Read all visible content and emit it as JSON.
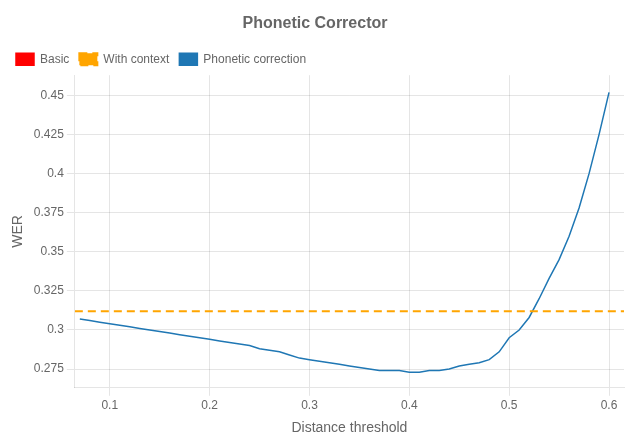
{
  "chart_data": {
    "type": "line",
    "title": "Phonetic Corrector",
    "xlabel": "Distance threshold",
    "ylabel": "WER",
    "xlim": [
      0.065,
      0.615
    ],
    "ylim": [
      0.263,
      0.463
    ],
    "xticks": [
      0.1,
      0.2,
      0.3,
      0.4,
      0.5,
      0.6
    ],
    "yticks": [
      0.275,
      0.3,
      0.325,
      0.35,
      0.375,
      0.4,
      0.425,
      0.45
    ],
    "grid": true,
    "legend": "upper left",
    "series": [
      {
        "name": "Basic",
        "color": "#ff0000",
        "x": [],
        "values": []
      },
      {
        "name": "With context",
        "color": "#ffa500",
        "line_style": "dashed",
        "x": [
          0.065,
          0.615
        ],
        "values": [
          0.312,
          0.312
        ]
      },
      {
        "name": "Phonetic correction",
        "color": "#1f77b4",
        "line_style": "solid",
        "x": [
          0.07,
          0.08,
          0.09,
          0.1,
          0.11,
          0.12,
          0.13,
          0.14,
          0.15,
          0.16,
          0.17,
          0.18,
          0.19,
          0.2,
          0.21,
          0.22,
          0.23,
          0.24,
          0.25,
          0.26,
          0.27,
          0.28,
          0.29,
          0.3,
          0.31,
          0.32,
          0.33,
          0.34,
          0.35,
          0.36,
          0.37,
          0.38,
          0.39,
          0.4,
          0.41,
          0.42,
          0.43,
          0.44,
          0.45,
          0.46,
          0.47,
          0.48,
          0.49,
          0.5,
          0.51,
          0.52,
          0.53,
          0.54,
          0.55,
          0.56,
          0.57,
          0.58,
          0.59,
          0.6
        ],
        "values": [
          0.307,
          0.306,
          0.305,
          0.304,
          0.303,
          0.302,
          0.301,
          0.3,
          0.299,
          0.298,
          0.297,
          0.296,
          0.295,
          0.294,
          0.293,
          0.292,
          0.291,
          0.29,
          0.288,
          0.287,
          0.286,
          0.284,
          0.282,
          0.281,
          0.28,
          0.279,
          0.278,
          0.277,
          0.276,
          0.275,
          0.274,
          0.274,
          0.274,
          0.273,
          0.273,
          0.274,
          0.274,
          0.275,
          0.277,
          0.278,
          0.279,
          0.281,
          0.286,
          0.295,
          0.3,
          0.308,
          0.32,
          0.333,
          0.345,
          0.36,
          0.378,
          0.4,
          0.425,
          0.452
        ]
      }
    ]
  }
}
